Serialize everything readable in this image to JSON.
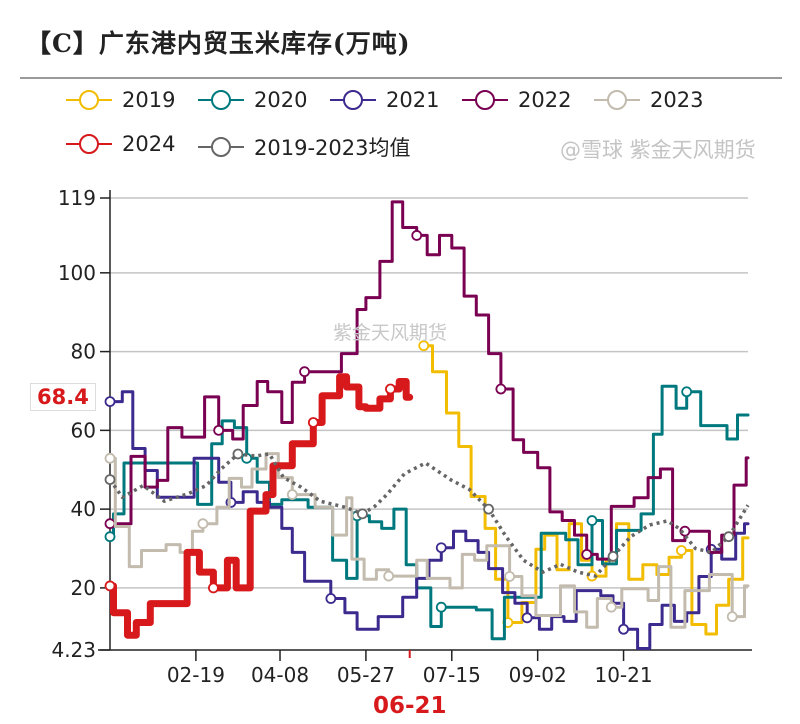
{
  "title": "【C】广东港内贸玉米库存(万吨)",
  "watermark": "紫金天风期货",
  "watermark_footer": "@雪球 紫金天风期货",
  "chart_data": {
    "type": "line",
    "title": "【C】广东港内贸玉米库存(万吨)",
    "xlabel": "",
    "ylabel": "",
    "ylim": [
      4.23,
      119
    ],
    "yticks": [
      "119",
      "100",
      "80",
      "60",
      "40",
      "20",
      "4.23"
    ],
    "ytick_values": [
      119,
      100,
      80,
      60,
      40,
      20,
      4.23
    ],
    "xlim": [
      "01-01",
      "12-31"
    ],
    "xticks": [
      "02-19",
      "04-08",
      "05-27",
      "07-15",
      "09-02",
      "10-21"
    ],
    "highlight_x": "06-21",
    "last_value_label": "68.4",
    "grid": true,
    "legend_position": "top",
    "step": true,
    "series": [
      {
        "name": "2019",
        "color": "#f2bd00",
        "dash": false,
        "points": [
          [
            "06-29",
            81.5
          ],
          [
            "07-04",
            74.9
          ],
          [
            "07-12",
            64.4
          ],
          [
            "07-19",
            55.9
          ],
          [
            "07-26",
            43.2
          ],
          [
            "08-03",
            35.1
          ],
          [
            "08-09",
            22.2
          ],
          [
            "08-16",
            11.2
          ],
          [
            "08-24",
            16.3
          ],
          [
            "09-01",
            29.8
          ],
          [
            "09-06",
            33.4
          ],
          [
            "09-13",
            24.6
          ],
          [
            "09-20",
            36.3
          ],
          [
            "09-27",
            27
          ],
          [
            "10-03",
            23
          ],
          [
            "10-11",
            27
          ],
          [
            "10-17",
            36.3
          ],
          [
            "10-24",
            22.2
          ],
          [
            "11-01",
            25.9
          ],
          [
            "11-09",
            23.4
          ],
          [
            "11-16",
            27.8
          ],
          [
            "11-23",
            29.5
          ],
          [
            "11-29",
            10.7
          ],
          [
            "12-07",
            8.3
          ],
          [
            "12-13",
            15.6
          ],
          [
            "12-20",
            22.2
          ],
          [
            "12-28",
            32.7
          ],
          [
            "12-31",
            32.7
          ]
        ]
      },
      {
        "name": "2020",
        "color": "#00797e",
        "dash": false,
        "points": [
          [
            "01-01",
            33
          ],
          [
            "01-03",
            38.8
          ],
          [
            "01-09",
            51.7
          ],
          [
            "02-20",
            41.2
          ],
          [
            "02-28",
            56.6
          ],
          [
            "03-06",
            62.4
          ],
          [
            "03-13",
            60.7
          ],
          [
            "03-20",
            52.9
          ],
          [
            "03-26",
            46.8
          ],
          [
            "04-02",
            41.2
          ],
          [
            "04-09",
            42.4
          ],
          [
            "04-24",
            40.5
          ],
          [
            "05-08",
            27
          ],
          [
            "05-16",
            22.4
          ],
          [
            "05-22",
            38.3
          ],
          [
            "05-29",
            36.8
          ],
          [
            "06-05",
            35.1
          ],
          [
            "06-12",
            40
          ],
          [
            "06-19",
            25.9
          ],
          [
            "06-25",
            20
          ],
          [
            "07-03",
            10.2
          ],
          [
            "07-09",
            15.1
          ],
          [
            "07-29",
            14.4
          ],
          [
            "08-07",
            7.1
          ],
          [
            "08-14",
            17.6
          ],
          [
            "09-04",
            33.9
          ],
          [
            "09-18",
            32.2
          ],
          [
            "09-25",
            25.9
          ],
          [
            "10-03",
            37.1
          ],
          [
            "10-09",
            26.1
          ],
          [
            "10-17",
            34.6
          ],
          [
            "10-31",
            38.8
          ],
          [
            "11-07",
            59
          ],
          [
            "11-12",
            71.2
          ],
          [
            "11-20",
            65.6
          ],
          [
            "11-26",
            69.8
          ],
          [
            "12-04",
            61.2
          ],
          [
            "12-19",
            57.8
          ],
          [
            "12-25",
            63.9
          ],
          [
            "12-31",
            63.9
          ]
        ]
      },
      {
        "name": "2021",
        "color": "#3d2a8e",
        "dash": false,
        "points": [
          [
            "01-01",
            67.3
          ],
          [
            "01-08",
            69.8
          ],
          [
            "01-14",
            55.4
          ],
          [
            "01-21",
            49.8
          ],
          [
            "01-28",
            43
          ],
          [
            "02-18",
            52.9
          ],
          [
            "03-04",
            46.8
          ],
          [
            "03-11",
            41.7
          ],
          [
            "03-18",
            44.4
          ],
          [
            "03-26",
            41.7
          ],
          [
            "04-02",
            40.5
          ],
          [
            "04-09",
            35.1
          ],
          [
            "04-15",
            29
          ],
          [
            "04-22",
            21.7
          ],
          [
            "05-07",
            17.3
          ],
          [
            "05-15",
            13.7
          ],
          [
            "05-22",
            9.5
          ],
          [
            "06-03",
            12.7
          ],
          [
            "06-17",
            17.6
          ],
          [
            "06-25",
            22.4
          ],
          [
            "07-02",
            27
          ],
          [
            "07-09",
            30.2
          ],
          [
            "07-16",
            34.4
          ],
          [
            "07-23",
            32
          ],
          [
            "07-30",
            29
          ],
          [
            "08-05",
            24.9
          ],
          [
            "08-13",
            18.8
          ],
          [
            "08-20",
            16.1
          ],
          [
            "08-27",
            12.4
          ],
          [
            "09-03",
            9.5
          ],
          [
            "09-10",
            12.7
          ],
          [
            "09-17",
            11.5
          ],
          [
            "09-24",
            19.3
          ],
          [
            "10-08",
            18
          ],
          [
            "10-15",
            16.1
          ],
          [
            "10-21",
            9.5
          ],
          [
            "10-29",
            4.6
          ],
          [
            "11-05",
            10.7
          ],
          [
            "11-12",
            15.6
          ],
          [
            "11-19",
            11.5
          ],
          [
            "11-26",
            13.7
          ],
          [
            "12-03",
            22.9
          ],
          [
            "12-10",
            29.8
          ],
          [
            "12-16",
            27.3
          ],
          [
            "12-24",
            33.9
          ],
          [
            "12-29",
            36.3
          ],
          [
            "12-31",
            36.3
          ]
        ]
      },
      {
        "name": "2022",
        "color": "#7a0052",
        "dash": false,
        "points": [
          [
            "01-01",
            36.3
          ],
          [
            "01-13",
            53.4
          ],
          [
            "01-21",
            45.6
          ],
          [
            "01-28",
            47.3
          ],
          [
            "02-03",
            60.7
          ],
          [
            "02-11",
            58.3
          ],
          [
            "02-24",
            68.5
          ],
          [
            "03-04",
            60
          ],
          [
            "03-12",
            57.8
          ],
          [
            "03-18",
            66.3
          ],
          [
            "03-26",
            72.4
          ],
          [
            "04-01",
            69.8
          ],
          [
            "04-09",
            62
          ],
          [
            "04-15",
            72.2
          ],
          [
            "04-22",
            74.9
          ],
          [
            "05-13",
            79.5
          ],
          [
            "05-22",
            90.7
          ],
          [
            "05-27",
            93.7
          ],
          [
            "06-04",
            102.9
          ],
          [
            "06-11",
            118
          ],
          [
            "06-17",
            111.5
          ],
          [
            "06-25",
            109.5
          ],
          [
            "07-01",
            104.6
          ],
          [
            "07-08",
            109.5
          ],
          [
            "07-15",
            106.3
          ],
          [
            "07-22",
            94.1
          ],
          [
            "07-29",
            89.3
          ],
          [
            "08-05",
            79.5
          ],
          [
            "08-12",
            70.5
          ],
          [
            "08-19",
            57.6
          ],
          [
            "08-25",
            54.4
          ],
          [
            "09-02",
            50.5
          ],
          [
            "09-09",
            39.3
          ],
          [
            "09-16",
            37.1
          ],
          [
            "09-23",
            33.4
          ],
          [
            "09-30",
            28.5
          ],
          [
            "10-06",
            27.3
          ],
          [
            "10-14",
            40.7
          ],
          [
            "10-27",
            42.9
          ],
          [
            "11-04",
            48
          ],
          [
            "11-11",
            50.2
          ],
          [
            "11-18",
            32
          ],
          [
            "11-25",
            34.4
          ],
          [
            "12-09",
            29
          ],
          [
            "12-16",
            33.4
          ],
          [
            "12-23",
            46.1
          ],
          [
            "12-30",
            53
          ],
          [
            "12-31",
            53
          ]
        ]
      },
      {
        "name": "2023",
        "color": "#c2bbae",
        "dash": false,
        "points": [
          [
            "01-01",
            52.9
          ],
          [
            "01-04",
            35.6
          ],
          [
            "01-12",
            25.4
          ],
          [
            "01-19",
            29.5
          ],
          [
            "02-02",
            31
          ],
          [
            "02-10",
            29
          ],
          [
            "02-17",
            34.4
          ],
          [
            "02-23",
            36.3
          ],
          [
            "03-03",
            40.5
          ],
          [
            "03-10",
            47.8
          ],
          [
            "03-17",
            45.6
          ],
          [
            "03-23",
            50.2
          ],
          [
            "03-31",
            54.1
          ],
          [
            "04-07",
            48
          ],
          [
            "04-15",
            43.7
          ],
          [
            "04-28",
            40.5
          ],
          [
            "05-08",
            33.4
          ],
          [
            "05-16",
            42.9
          ],
          [
            "05-19",
            27.3
          ],
          [
            "05-26",
            22.2
          ],
          [
            "06-02",
            24.6
          ],
          [
            "06-09",
            23
          ],
          [
            "06-25",
            27
          ],
          [
            "07-01",
            22.4
          ],
          [
            "07-14",
            20
          ],
          [
            "07-21",
            28.5
          ],
          [
            "07-28",
            27
          ],
          [
            "08-04",
            30.7
          ],
          [
            "08-17",
            22.9
          ],
          [
            "08-24",
            18
          ],
          [
            "09-01",
            13
          ],
          [
            "09-15",
            20.5
          ],
          [
            "09-23",
            13.9
          ],
          [
            "09-30",
            10
          ],
          [
            "10-06",
            17.3
          ],
          [
            "10-14",
            15.1
          ],
          [
            "10-20",
            19.8
          ],
          [
            "11-04",
            16.8
          ],
          [
            "11-10",
            25.4
          ],
          [
            "11-17",
            10
          ],
          [
            "11-25",
            19.3
          ],
          [
            "12-09",
            23.4
          ],
          [
            "12-22",
            12.7
          ],
          [
            "12-29",
            20.5
          ],
          [
            "12-31",
            20.5
          ]
        ]
      },
      {
        "name": "2024",
        "color": "#d7191c",
        "dash": false,
        "thick": true,
        "points": [
          [
            "01-01",
            20.5
          ],
          [
            "01-03",
            13.7
          ],
          [
            "01-11",
            8
          ],
          [
            "01-16",
            11.2
          ],
          [
            "01-24",
            16
          ],
          [
            "02-14",
            29
          ],
          [
            "02-21",
            24
          ],
          [
            "03-01",
            20
          ],
          [
            "03-09",
            27
          ],
          [
            "03-14",
            20
          ],
          [
            "03-22",
            39.5
          ],
          [
            "03-31",
            43.7
          ],
          [
            "04-04",
            51
          ],
          [
            "04-15",
            56.6
          ],
          [
            "04-27",
            62
          ],
          [
            "05-02",
            68.8
          ],
          [
            "05-12",
            73.6
          ],
          [
            "05-16",
            71
          ],
          [
            "05-23",
            66
          ],
          [
            "05-27",
            65.6
          ],
          [
            "06-04",
            68
          ],
          [
            "06-10",
            70.5
          ],
          [
            "06-15",
            72.4
          ],
          [
            "06-19",
            68.4
          ],
          [
            "06-21",
            68.4
          ]
        ]
      },
      {
        "name": "2019-2023均值",
        "color": "#666666",
        "dash": true,
        "step": false,
        "points": [
          [
            "01-01",
            47.5
          ],
          [
            "01-08",
            43
          ],
          [
            "01-20",
            46
          ],
          [
            "02-01",
            42
          ],
          [
            "02-15",
            44
          ],
          [
            "02-25",
            46
          ],
          [
            "03-05",
            50
          ],
          [
            "03-15",
            54
          ],
          [
            "03-25",
            53.5
          ],
          [
            "04-02",
            54
          ],
          [
            "04-10",
            48
          ],
          [
            "04-20",
            45.6
          ],
          [
            "05-01",
            42
          ],
          [
            "05-15",
            40.5
          ],
          [
            "05-25",
            38.8
          ],
          [
            "06-01",
            40.7
          ],
          [
            "06-08",
            43.7
          ],
          [
            "06-18",
            49
          ],
          [
            "06-30",
            51.7
          ],
          [
            "07-15",
            47.3
          ],
          [
            "07-25",
            45
          ],
          [
            "08-05",
            40
          ],
          [
            "08-15",
            33
          ],
          [
            "08-25",
            27
          ],
          [
            "09-05",
            24
          ],
          [
            "09-15",
            26
          ],
          [
            "09-25",
            24
          ],
          [
            "10-05",
            23
          ],
          [
            "10-15",
            28
          ],
          [
            "10-25",
            33
          ],
          [
            "11-05",
            36
          ],
          [
            "11-15",
            37
          ],
          [
            "11-22",
            35
          ],
          [
            "12-01",
            30
          ],
          [
            "12-10",
            29
          ],
          [
            "12-20",
            33
          ],
          [
            "12-31",
            41
          ]
        ]
      }
    ]
  }
}
